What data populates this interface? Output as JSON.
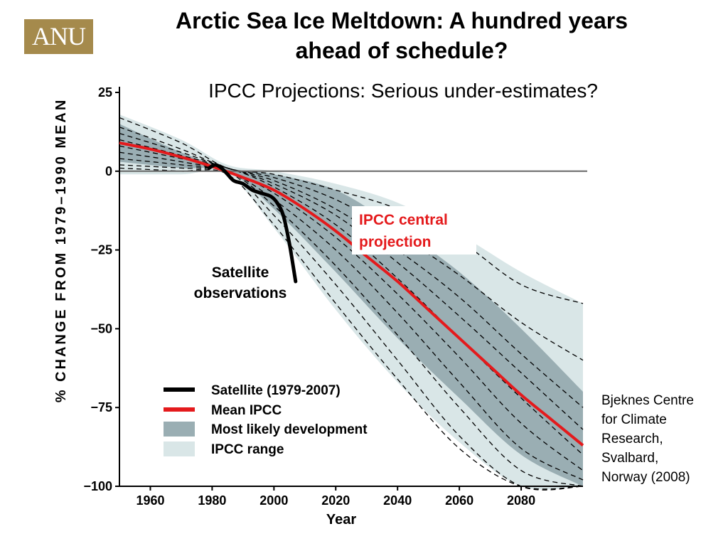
{
  "logo": {
    "text": "ANU",
    "color": "#a58a4c"
  },
  "slide": {
    "title_line1": "Arctic Sea Ice Meltdown: A hundred years",
    "title_line2": "ahead of schedule?",
    "subtitle": "IPCC Projections: Serious under-estimates?"
  },
  "credit": [
    "Bjeknes Centre",
    "for Climate",
    "Research,",
    "Svalbard,",
    "Norway (2008)"
  ],
  "chart_data": {
    "type": "line",
    "xlabel": "Year",
    "ylabel": "% CHANGE FROM 1979–1990 MEAN",
    "xlim": [
      1950,
      2100
    ],
    "ylim": [
      -100,
      25
    ],
    "x_ticks": [
      1960,
      1980,
      2000,
      2020,
      2040,
      2060,
      2080
    ],
    "y_ticks": [
      25,
      0,
      -25,
      -50,
      -75,
      -100
    ],
    "y_tick_labels": [
      "25",
      "0",
      "−25",
      "−50",
      "−75",
      "−100"
    ],
    "reference_line_y": 0,
    "series": [
      {
        "name": "Satellite (1979-2007)",
        "color": "#000000",
        "x": [
          1979,
          1981,
          1983,
          1985,
          1987,
          1990,
          1993,
          1996,
          1999,
          2001,
          2003,
          2005,
          2007
        ],
        "y": [
          1,
          2,
          1,
          -1,
          -3,
          -4,
          -6,
          -7,
          -8,
          -10,
          -14,
          -23,
          -35
        ]
      },
      {
        "name": "Mean IPCC",
        "color": "#e41a1c",
        "x": [
          1950,
          1960,
          1970,
          1980,
          1990,
          2000,
          2010,
          2020,
          2030,
          2040,
          2050,
          2060,
          2070,
          2080,
          2090,
          2100
        ],
        "y": [
          9,
          7,
          4.5,
          1.5,
          -2,
          -6,
          -12,
          -19,
          -27,
          -35,
          -44,
          -53,
          -62,
          -71,
          -79,
          -87
        ]
      },
      {
        "name": "Most likely development",
        "color": "#9aaeb3",
        "x": [
          1950,
          1970,
          1985,
          2000,
          2020,
          2040,
          2060,
          2080,
          2100
        ],
        "upper": [
          15,
          6,
          1,
          -1,
          -6,
          -18,
          -32,
          -50,
          -70
        ],
        "lower": [
          3,
          1,
          0,
          -12,
          -32,
          -53,
          -72,
          -90,
          -100
        ]
      },
      {
        "name": "IPCC range",
        "color": "#d9e6e7",
        "x": [
          1950,
          1970,
          1985,
          2000,
          2020,
          2040,
          2060,
          2080,
          2100
        ],
        "upper": [
          18,
          10,
          2,
          0,
          -4,
          -10,
          -20,
          -32,
          -42
        ],
        "lower": [
          -1,
          -1,
          -1,
          -18,
          -44,
          -67,
          -86,
          -100,
          -100
        ]
      }
    ],
    "model_runs": [
      {
        "x": [
          1950,
          1970,
          1985,
          2000,
          2020,
          2040,
          2060,
          2080,
          2100
        ],
        "y": [
          17,
          9,
          1,
          -1,
          -6,
          -12,
          -22,
          -36,
          -42
        ]
      },
      {
        "x": [
          1950,
          1970,
          1985,
          2000,
          2020,
          2040,
          2060,
          2080,
          2100
        ],
        "y": [
          14,
          7,
          1,
          -2,
          -9,
          -20,
          -33,
          -48,
          -60
        ]
      },
      {
        "x": [
          1950,
          1970,
          1985,
          2000,
          2020,
          2040,
          2060,
          2080,
          2100
        ],
        "y": [
          12,
          6,
          1,
          -3,
          -12,
          -25,
          -40,
          -58,
          -75
        ]
      },
      {
        "x": [
          1950,
          1970,
          1985,
          2000,
          2020,
          2040,
          2060,
          2080,
          2100
        ],
        "y": [
          10,
          5,
          1,
          -4,
          -14,
          -29,
          -46,
          -64,
          -82
        ]
      },
      {
        "x": [
          1950,
          1970,
          1985,
          2000,
          2020,
          2040,
          2060,
          2080,
          2100
        ],
        "y": [
          8,
          4,
          1,
          -5,
          -17,
          -34,
          -53,
          -72,
          -90
        ]
      },
      {
        "x": [
          1950,
          1970,
          1985,
          2000,
          2020,
          2040,
          2060,
          2080,
          2100
        ],
        "y": [
          6,
          3,
          0,
          -7,
          -21,
          -39,
          -59,
          -80,
          -95
        ]
      },
      {
        "x": [
          1950,
          1970,
          1985,
          2000,
          2020,
          2040,
          2060,
          2080,
          2100
        ],
        "y": [
          4,
          2,
          0,
          -9,
          -25,
          -45,
          -67,
          -88,
          -98
        ]
      },
      {
        "x": [
          1950,
          1970,
          1985,
          2000,
          2020,
          2040,
          2060,
          2080,
          2100
        ],
        "y": [
          2,
          1,
          0,
          -11,
          -30,
          -52,
          -75,
          -95,
          -100
        ]
      },
      {
        "x": [
          1950,
          1970,
          1985,
          2000,
          2020,
          2040,
          2060,
          2080,
          2100
        ],
        "y": [
          0,
          0,
          0,
          -14,
          -36,
          -60,
          -84,
          -100,
          -100
        ]
      },
      {
        "x": [
          1950,
          1970,
          1985,
          2000,
          2020,
          2040,
          2060,
          2080,
          2100
        ],
        "y": [
          1,
          0,
          -1,
          -17,
          -42,
          -66,
          -88,
          -100,
          -100
        ]
      }
    ],
    "legend": {
      "placement": "bottom-left",
      "entries": [
        {
          "label": "Satellite (1979-2007)",
          "kind": "line",
          "color": "#000000"
        },
        {
          "label": "Mean IPCC",
          "kind": "line",
          "color": "#e41a1c"
        },
        {
          "label": "Most likely development",
          "kind": "patch",
          "color": "#9aaeb3"
        },
        {
          "label": "IPCC range",
          "kind": "patch",
          "color": "#d9e6e7"
        }
      ]
    },
    "annotations": {
      "satellite": [
        "Satellite",
        "observations"
      ],
      "ipcc": [
        "IPCC central",
        "projection"
      ]
    }
  }
}
